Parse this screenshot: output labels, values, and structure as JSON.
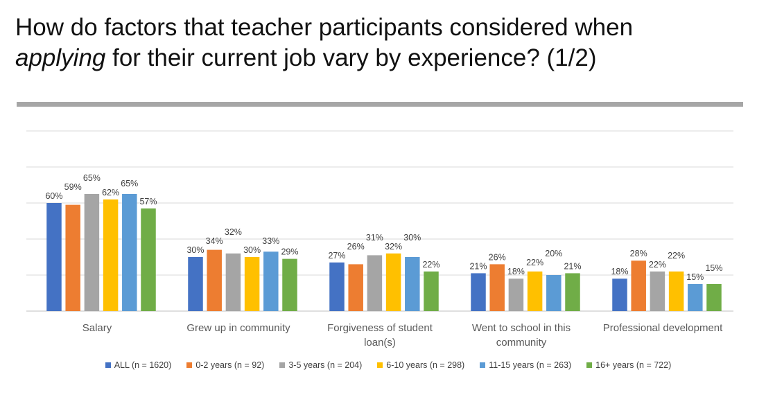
{
  "slide": {
    "title_line1": "How do factors that teacher participants considered when",
    "title_line2_italic": "applying",
    "title_line2_rest": " for their current job vary by experience? (1/2)"
  },
  "chart_data": {
    "type": "bar",
    "title": "",
    "xlabel": "",
    "ylabel": "",
    "ylim": [
      0,
      100
    ],
    "gridlines": [
      0,
      20,
      40,
      60,
      80,
      100
    ],
    "grid": true,
    "legend_position": "bottom",
    "categories": [
      [
        "Salary"
      ],
      [
        "Grew up in community"
      ],
      [
        "Forgiveness of student",
        "loan(s)"
      ],
      [
        "Went to school in this",
        "community"
      ],
      [
        "Professional development"
      ]
    ],
    "series": [
      {
        "name": "ALL (n = 1620)",
        "color": "#4472c4",
        "values": [
          60,
          30,
          27,
          21,
          18
        ]
      },
      {
        "name": "0-2 years (n = 92)",
        "color": "#ed7d31",
        "values": [
          59,
          34,
          26,
          26,
          28
        ]
      },
      {
        "name": "3-5 years (n = 204)",
        "color": "#a5a5a5",
        "values": [
          65,
          32,
          31,
          18,
          22
        ]
      },
      {
        "name": "6-10 years (n = 298)",
        "color": "#ffc000",
        "values": [
          62,
          30,
          32,
          22,
          22
        ]
      },
      {
        "name": "11-15 years (n = 263)",
        "color": "#5b9bd5",
        "values": [
          65,
          33,
          30,
          20,
          15
        ]
      },
      {
        "name": "16+ years (n = 722)",
        "color": "#70ad47",
        "values": [
          57,
          29,
          22,
          21,
          15
        ]
      }
    ],
    "value_suffix": "%"
  }
}
